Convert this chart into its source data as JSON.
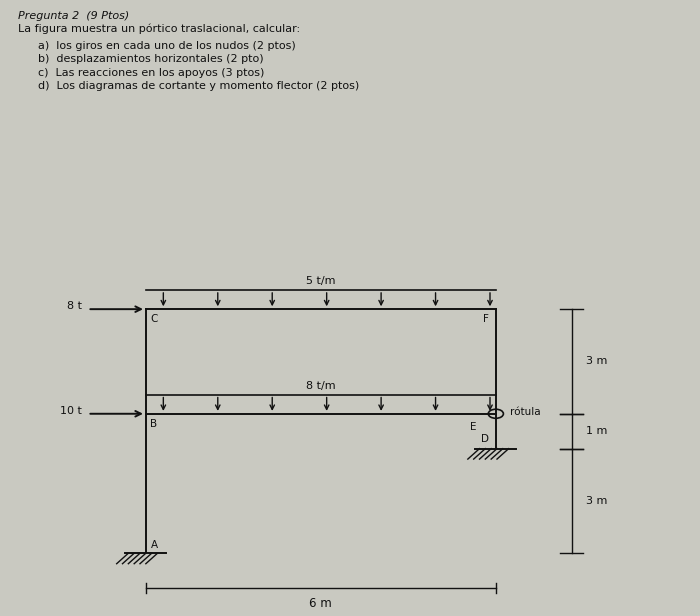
{
  "title_line1": "Pregunta 2  (9 Ptos)",
  "title_line2": "La figura muestra un pórtico traslacional, calcular:",
  "items": [
    "a)  los giros en cada uno de los nudos (2 ptos)",
    "b)  desplazamientos horizontales (2 pto)",
    "c)  Las reacciones en los apoyos (3 ptos)",
    "d)  Los diagramas de cortante y momento flector (2 ptos)"
  ],
  "bg_color": "#c9c9c1",
  "text_color": "#111111",
  "line_color": "#111111",
  "dim_3m_top": "3 m",
  "dim_1m": "1 m",
  "dim_3m_bot": "3 m",
  "dim_6m": "6 m",
  "load_top": "5 t/m",
  "load_mid": "8 t/m",
  "force_8t": "8 t",
  "force_10t": "10 t",
  "rotula_label": "rótula"
}
